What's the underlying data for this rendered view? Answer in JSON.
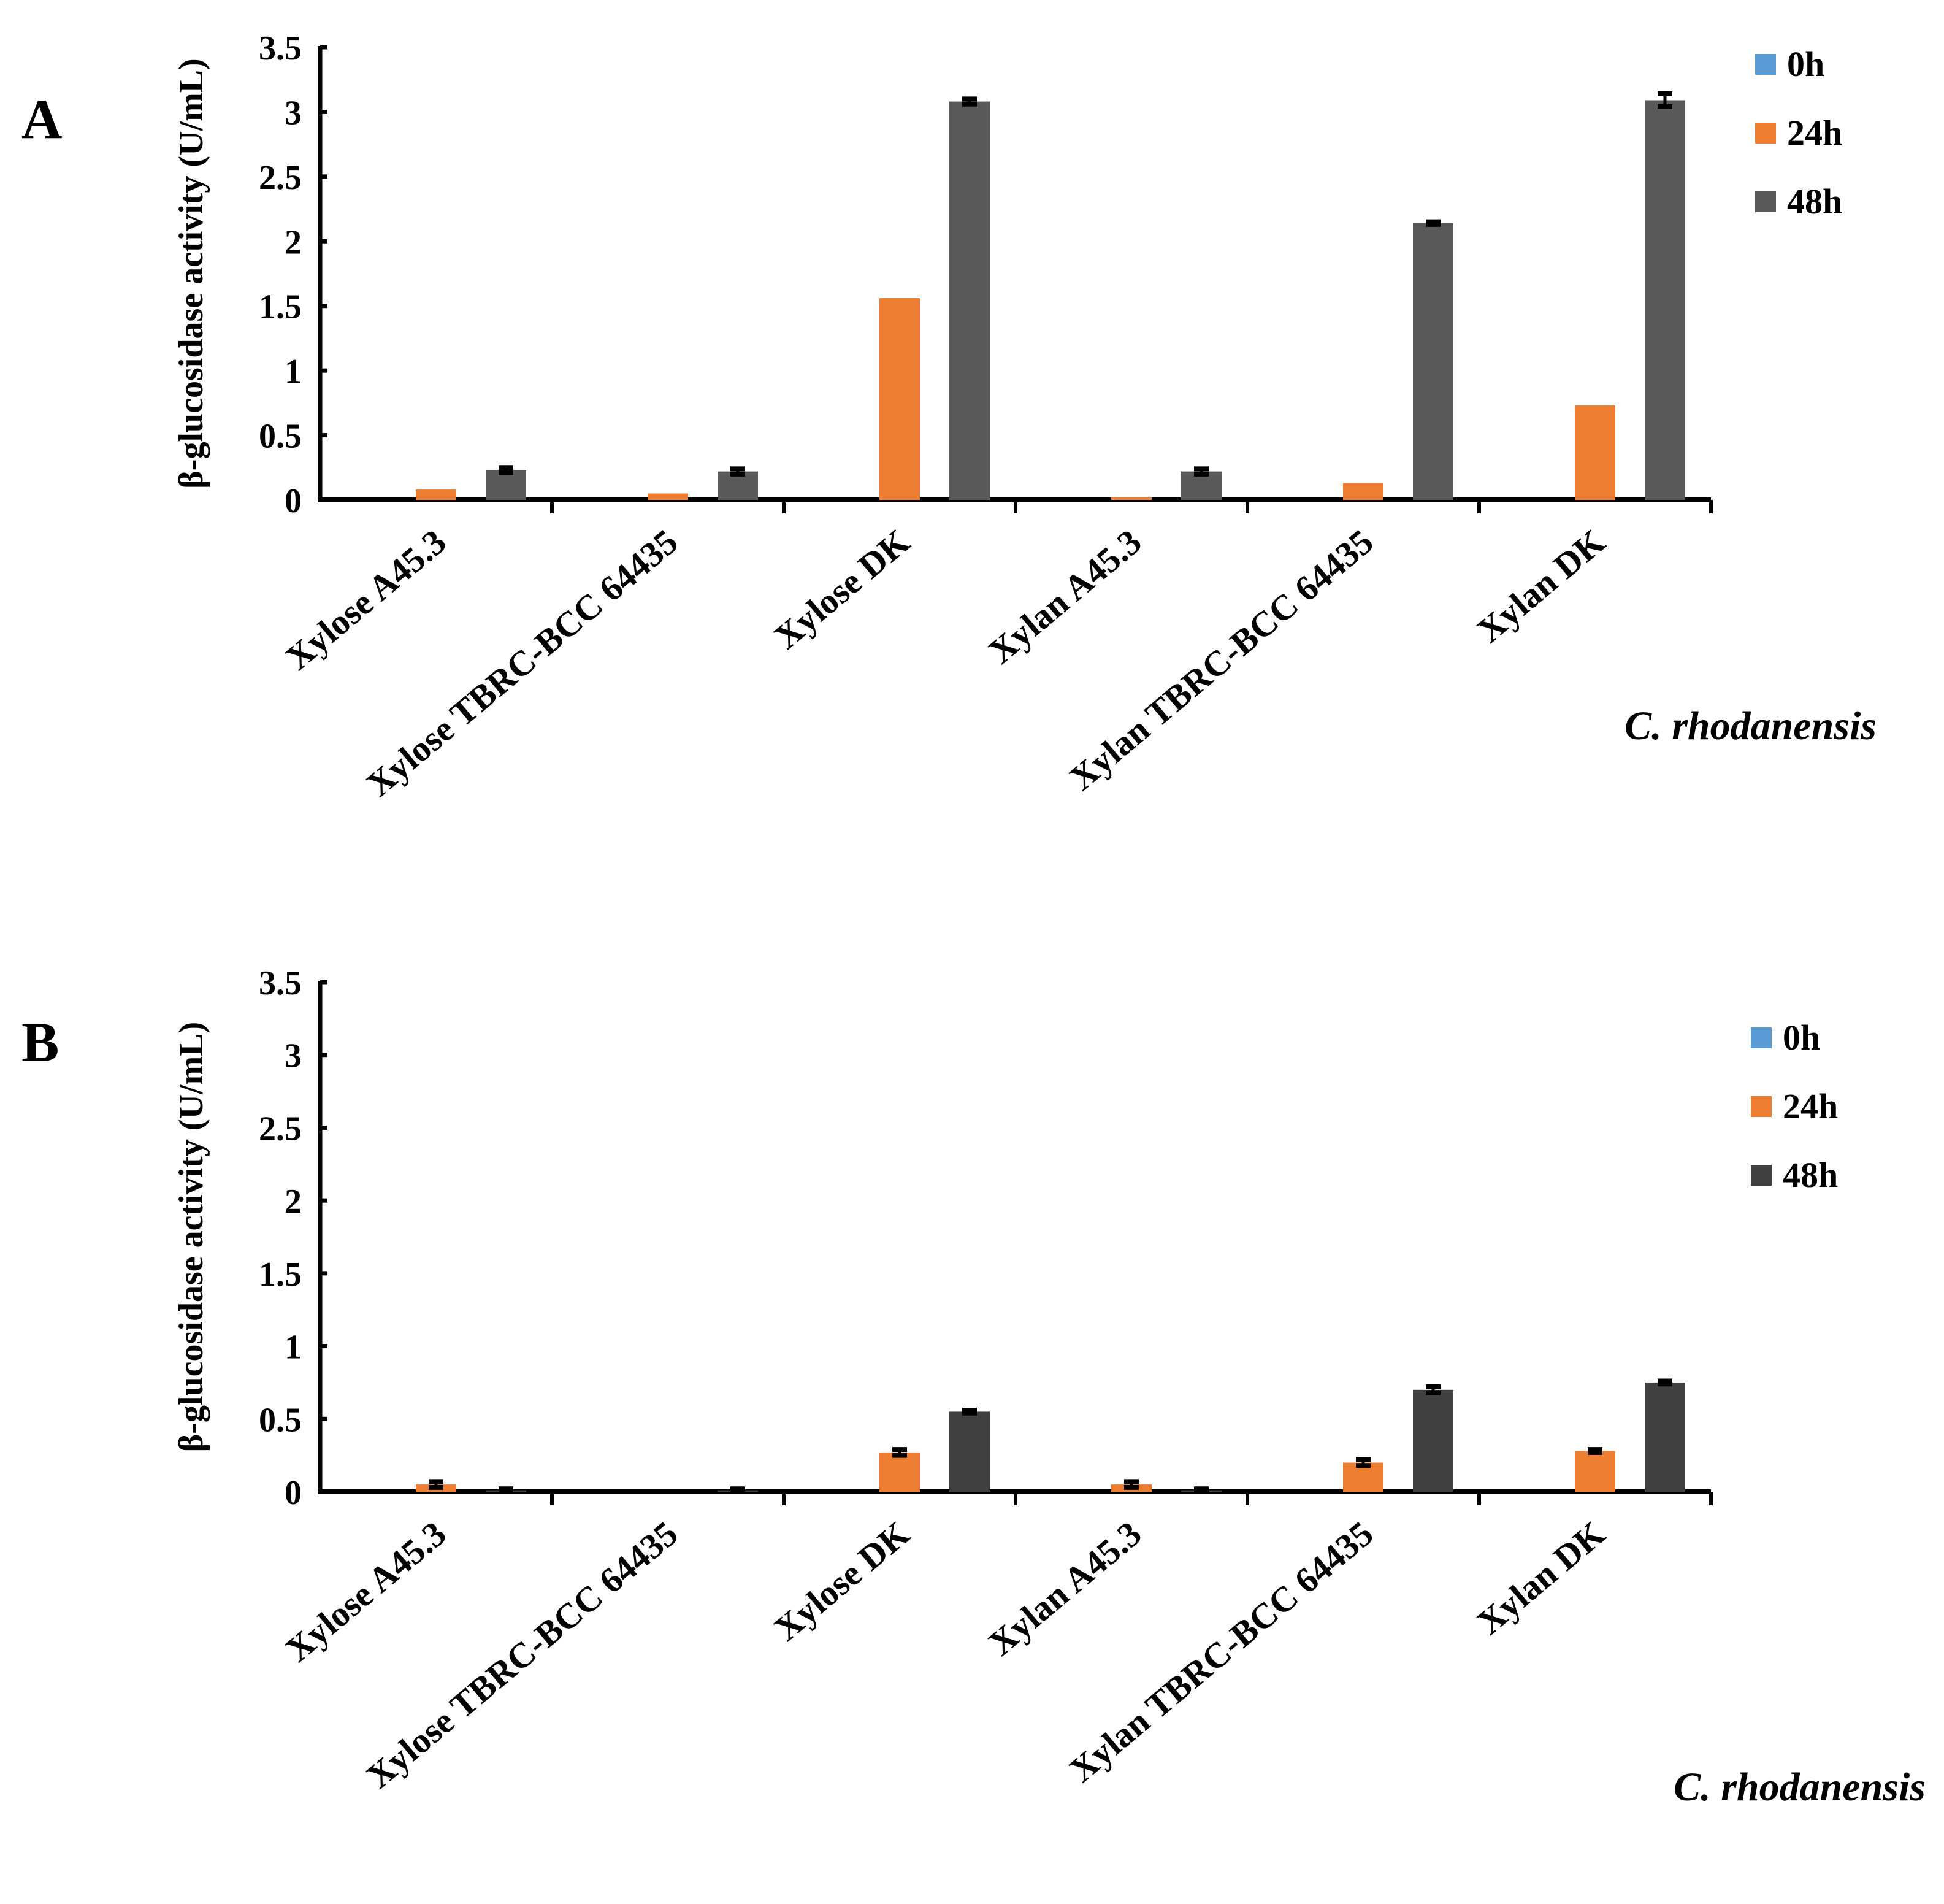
{
  "chart_data": [
    {
      "type": "bar",
      "panel_label": "A",
      "ylabel": "β-glucosidase activity (U/mL)",
      "xlabel": "C. rhodanensis",
      "ylim": [
        0,
        3.5
      ],
      "yticks": [
        "0",
        "0.5",
        "1",
        "1.5",
        "2",
        "2.5",
        "3",
        "3.5"
      ],
      "grid": false,
      "legend_position": "top-right",
      "categories": [
        "Xylose A45.3",
        "Xylose TBRC-BCC 64435",
        "Xylose DK",
        "Xylan A45.3",
        "Xylan TBRC-BCC 64435",
        "Xylan DK"
      ],
      "series": [
        {
          "name": "0h",
          "color": "#5b9bd5",
          "values": [
            0,
            0,
            0,
            0,
            0,
            0
          ]
        },
        {
          "name": "24h",
          "color": "#ed7d31",
          "values": [
            0.08,
            0.05,
            1.56,
            0.02,
            0.13,
            0.73
          ]
        },
        {
          "name": "48h",
          "color": "#595959",
          "values": [
            0.23,
            0.22,
            3.08,
            0.22,
            2.14,
            3.09
          ],
          "errors": [
            0.02,
            0.02,
            0.02,
            0.02,
            0.01,
            0.05
          ]
        }
      ]
    },
    {
      "type": "bar",
      "panel_label": "B",
      "ylabel": "β-glucosidase activity (U/mL)",
      "xlabel": "C. rhodanensis",
      "ylim": [
        0,
        3.5
      ],
      "yticks": [
        "0",
        "0.5",
        "1",
        "1.5",
        "2",
        "2.5",
        "3",
        "3.5"
      ],
      "grid": false,
      "legend_position": "top-right",
      "categories": [
        "Xylose A45.3",
        "Xylose TBRC-BCC 64435",
        "Xylose DK",
        "Xylan A45.3",
        "Xylan TBRC-BCC 64435",
        "Xylan DK"
      ],
      "series": [
        {
          "name": "0h",
          "color": "#5b9bd5",
          "values": [
            0,
            0,
            0,
            0,
            0,
            0
          ]
        },
        {
          "name": "24h",
          "color": "#ed7d31",
          "values": [
            0.05,
            0,
            0.27,
            0.05,
            0.2,
            0.28
          ],
          "errors": [
            0.02,
            0,
            0.02,
            0.02,
            0.02,
            0.01
          ]
        },
        {
          "name": "48h",
          "color": "#404040",
          "values": [
            0.01,
            0.01,
            0.55,
            0.01,
            0.7,
            0.75
          ],
          "errors": [
            0.01,
            0.01,
            0.01,
            0.01,
            0.02,
            0.01
          ]
        }
      ]
    }
  ]
}
